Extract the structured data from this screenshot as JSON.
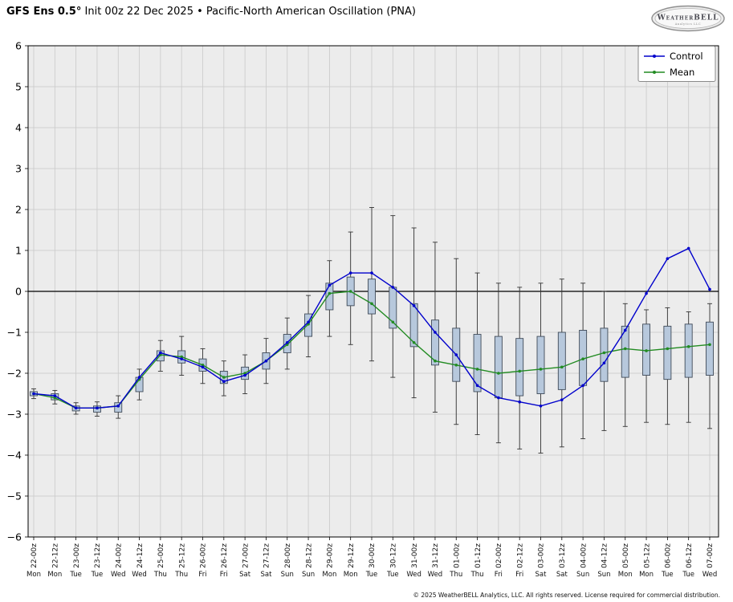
{
  "header": {
    "title_bold": "GFS Ens 0.5°",
    "title_rest": " Init 00z 22 Dec 2025 • Pacific-North American Oscillation (PNA)",
    "logo_text": "WeatherBELL",
    "logo_subtext": "Analytics LLC"
  },
  "footer": {
    "copyright": "© 2025 WeatherBELL Analytics, LLC. All rights reserved. License required for commercial distribution."
  },
  "colors": {
    "control": "#0000cc",
    "mean": "#228b22",
    "box_fill": "#b7c8dc",
    "box_stroke": "#3f4a58",
    "whisker": "#333333",
    "grid": "#c9c9c9",
    "plot_bg": "#ececec",
    "zero_line": "#000000",
    "frame": "#000000"
  },
  "chart_data": {
    "type": "line",
    "subtype": "ensemble-box-whisker-with-lines",
    "title": "GFS Ens 0.5° Init 00z 22 Dec 2025 • Pacific-North American Oscillation (PNA)",
    "xlabel": "",
    "ylabel": "",
    "ylim": [
      -6,
      6
    ],
    "ytick_step": 1,
    "grid": true,
    "legend_position": "upper right",
    "x_labels": [
      "22-00z",
      "22-12z",
      "23-00z",
      "23-12z",
      "24-00z",
      "24-12z",
      "25-00z",
      "25-12z",
      "26-00z",
      "26-12z",
      "27-00z",
      "27-12z",
      "28-00z",
      "28-12z",
      "29-00z",
      "29-12z",
      "30-00z",
      "30-12z",
      "31-00z",
      "31-12z",
      "01-00z",
      "01-12z",
      "02-00z",
      "02-12z",
      "03-00z",
      "03-12z",
      "04-00z",
      "04-12z",
      "05-00z",
      "05-12z",
      "06-00z",
      "06-12z",
      "07-00z"
    ],
    "day_labels": [
      "Mon",
      "Mon",
      "Tue",
      "Tue",
      "Wed",
      "Wed",
      "Thu",
      "Thu",
      "Fri",
      "Fri",
      "Sat",
      "Sat",
      "Sun",
      "Sun",
      "Mon",
      "Mon",
      "Tue",
      "Tue",
      "Wed",
      "Wed",
      "Thu",
      "Thu",
      "Fri",
      "Fri",
      "Sat",
      "Sat",
      "Sun",
      "Sun",
      "Mon",
      "Mon",
      "Tue",
      "Tue",
      "Wed"
    ],
    "series": [
      {
        "name": "Control",
        "values": [
          -2.5,
          -2.55,
          -2.85,
          -2.85,
          -2.8,
          -2.1,
          -1.5,
          -1.65,
          -1.85,
          -2.2,
          -2.05,
          -1.7,
          -1.25,
          -0.75,
          0.15,
          0.45,
          0.45,
          0.1,
          -0.35,
          -1.0,
          -1.55,
          -2.3,
          -2.6,
          -2.7,
          -2.8,
          -2.65,
          -2.3,
          -1.75,
          -0.95,
          -0.05,
          0.8,
          1.05,
          0.05
        ]
      },
      {
        "name": "Mean",
        "values": [
          -2.5,
          -2.6,
          -2.85,
          -2.85,
          -2.8,
          -2.15,
          -1.55,
          -1.6,
          -1.8,
          -2.1,
          -2.0,
          -1.7,
          -1.3,
          -0.8,
          -0.05,
          0.0,
          -0.3,
          -0.75,
          -1.25,
          -1.7,
          -1.8,
          -1.9,
          -2.0,
          -1.95,
          -1.9,
          -1.85,
          -1.65,
          -1.5,
          -1.4,
          -1.45,
          -1.4,
          -1.35,
          -1.3
        ]
      }
    ],
    "boxes_note": "per x tick: [box_low, box_high, whisker_low, whisker_high] in PNA units",
    "boxes": [
      [
        -2.55,
        -2.45,
        -2.62,
        -2.38
      ],
      [
        -2.65,
        -2.5,
        -2.75,
        -2.42
      ],
      [
        -2.92,
        -2.8,
        -3.0,
        -2.72
      ],
      [
        -2.95,
        -2.8,
        -3.05,
        -2.7
      ],
      [
        -2.95,
        -2.72,
        -3.1,
        -2.55
      ],
      [
        -2.45,
        -2.1,
        -2.65,
        -1.9
      ],
      [
        -1.7,
        -1.45,
        -1.95,
        -1.2
      ],
      [
        -1.75,
        -1.45,
        -2.05,
        -1.1
      ],
      [
        -1.95,
        -1.65,
        -2.25,
        -1.4
      ],
      [
        -2.25,
        -1.95,
        -2.55,
        -1.7
      ],
      [
        -2.15,
        -1.85,
        -2.5,
        -1.55
      ],
      [
        -1.9,
        -1.5,
        -2.25,
        -1.15
      ],
      [
        -1.5,
        -1.05,
        -1.9,
        -0.65
      ],
      [
        -1.1,
        -0.55,
        -1.6,
        -0.1
      ],
      [
        -0.45,
        0.2,
        -1.1,
        0.75
      ],
      [
        -0.35,
        0.35,
        -1.3,
        1.45
      ],
      [
        -0.55,
        0.3,
        -1.7,
        2.05
      ],
      [
        -0.9,
        0.1,
        -2.1,
        1.85
      ],
      [
        -1.35,
        -0.3,
        -2.6,
        1.55
      ],
      [
        -1.8,
        -0.7,
        -2.95,
        1.2
      ],
      [
        -2.2,
        -0.9,
        -3.25,
        0.8
      ],
      [
        -2.45,
        -1.05,
        -3.5,
        0.45
      ],
      [
        -2.6,
        -1.1,
        -3.7,
        0.2
      ],
      [
        -2.55,
        -1.15,
        -3.85,
        0.1
      ],
      [
        -2.5,
        -1.1,
        -3.95,
        0.2
      ],
      [
        -2.4,
        -1.0,
        -3.8,
        0.3
      ],
      [
        -2.3,
        -0.95,
        -3.6,
        0.2
      ],
      [
        -2.2,
        -0.9,
        -3.4,
        0.0
      ],
      [
        -2.1,
        -0.85,
        -3.3,
        -0.3
      ],
      [
        -2.05,
        -0.8,
        -3.2,
        -0.45
      ],
      [
        -2.15,
        -0.85,
        -3.25,
        -0.4
      ],
      [
        -2.1,
        -0.8,
        -3.2,
        -0.5
      ],
      [
        -2.05,
        -0.75,
        -3.35,
        -0.3
      ]
    ]
  }
}
